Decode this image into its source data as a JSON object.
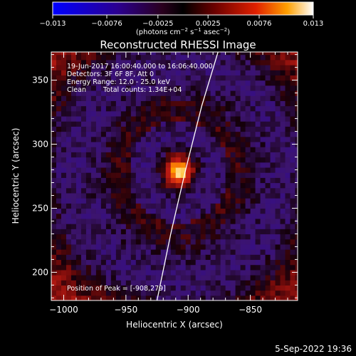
{
  "chart_data": {
    "type": "heatmap",
    "title": "Reconstructed RHESSI Image",
    "xlabel": "Heliocentric X (arcsec)",
    "ylabel": "Heliocentric Y (arcsec)",
    "xlim": [
      -1010,
      -812
    ],
    "ylim": [
      178,
      372
    ],
    "x_ticks": [
      -1000,
      -950,
      -900,
      -850
    ],
    "x_tick_labels": [
      "−1000",
      "−950",
      "−900",
      "−850"
    ],
    "y_ticks": [
      200,
      250,
      300,
      350
    ],
    "y_tick_labels": [
      "200",
      "250",
      "300",
      "350"
    ],
    "colorbar": {
      "min": -0.013,
      "max": 0.013,
      "ticks": [
        -0.013,
        -0.0076,
        -0.0025,
        0.0025,
        0.0076,
        0.013
      ],
      "tick_labels": [
        "−0.013",
        "−0.0076",
        "−0.0025",
        "0.0025",
        "0.0076",
        "0.013"
      ],
      "units_prefix": "(photons cm",
      "units_exp1": "−2",
      "units_mid1": " s",
      "units_exp2": "−1",
      "units_mid2": " asec",
      "units_exp3": "−2",
      "units_suffix": ")"
    },
    "peak": {
      "x": -908,
      "y": 279,
      "value": 0.013
    },
    "limb_curve": [
      [
        -925,
        178
      ],
      [
        -914,
        230
      ],
      [
        -902,
        280
      ],
      [
        -889,
        330
      ],
      [
        -876,
        372
      ]
    ],
    "annotations": {
      "time_range": "19-Jun-2017 16:00:40.000 to 16:06:40.000",
      "detectors": "Detectors: 3F 6F 8F, Att 0",
      "energy": "Energy Range: 12.0 - 25.0 keV",
      "method": "Clean",
      "counts": "Total counts: 1.34E+04",
      "peak_label": "Position of Peak = [-908,279]"
    },
    "grid": false,
    "legend": "none"
  },
  "timestamp": "5-Sep-2022 19:36"
}
